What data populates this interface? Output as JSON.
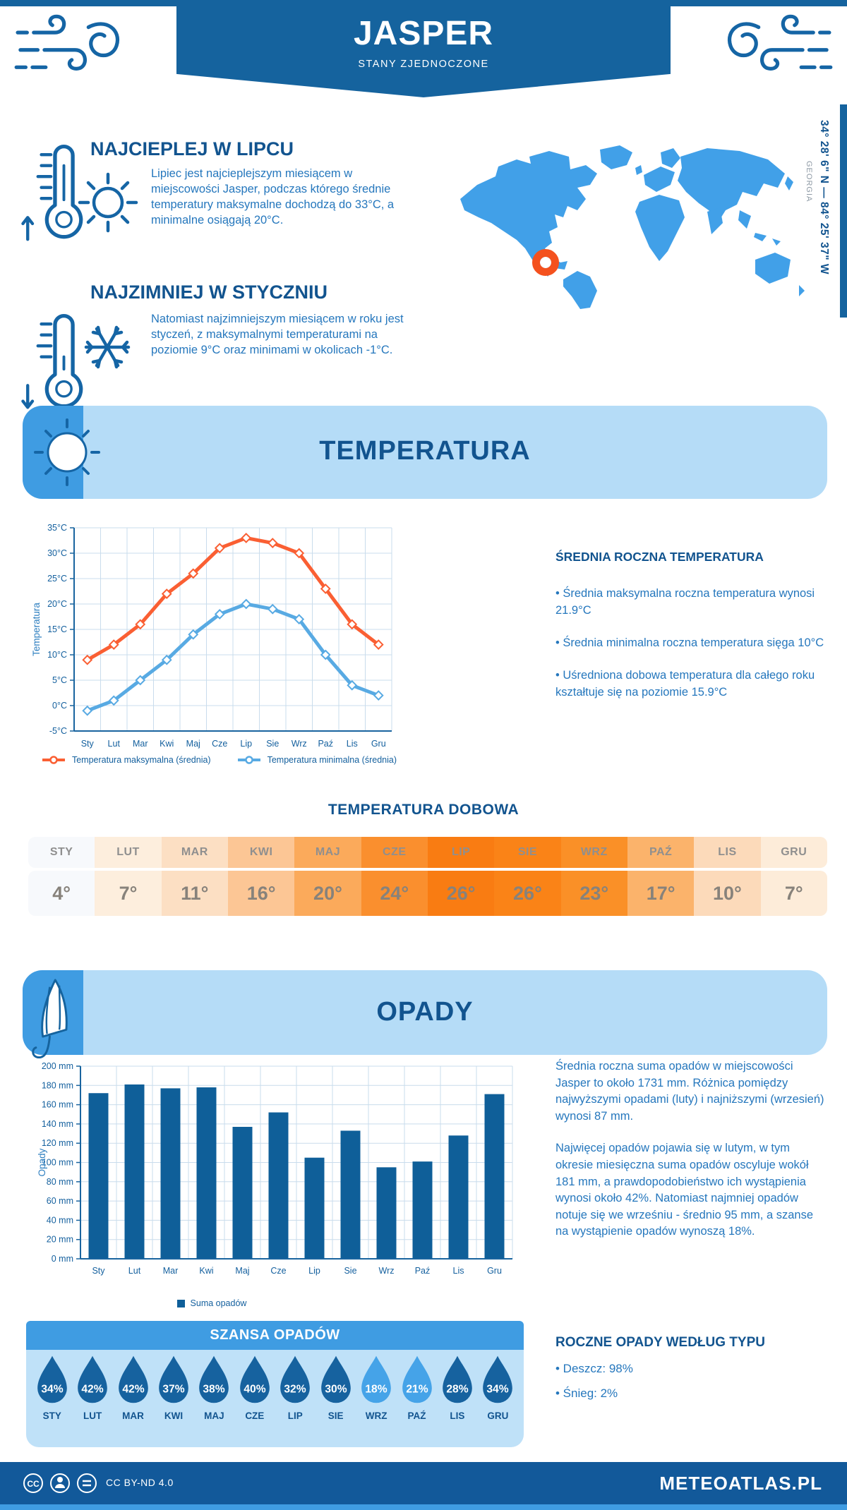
{
  "header": {
    "title": "JASPER",
    "subtitle": "STANY ZJEDNOCZONE"
  },
  "highlights": {
    "warm": {
      "title": "NAJCIEPLEJ W LIPCU",
      "text": "Lipiec jest najcieplejszym miesiącem w miejscowości Jasper, podczas którego średnie temperatury maksymalne dochodzą do 33°C, a minimalne osiągają 20°C."
    },
    "cold": {
      "title": "NAJZIMNIEJ W STYCZNIU",
      "text": "Natomiast najzimniejszym miesiącem w roku jest styczeń, z maksymalnymi temperaturami na poziomie 9°C oraz minimami w okolicach -1°C."
    }
  },
  "map": {
    "region": "GEORGIA",
    "coordinates": "34° 28' 6\" N — 84° 25' 37\" W",
    "land_color": "#41a0e8",
    "marker_color": "#f4511e"
  },
  "temperature_section": {
    "title": "TEMPERATURA",
    "panel_title": "ŚREDNIA ROCZNA TEMPERATURA",
    "bullets": [
      "• Średnia maksymalna roczna temperatura wynosi 21.9°C",
      "• Średnia minimalna roczna temperatura sięga 10°C",
      "• Uśredniona dobowa temperatura dla całego roku kształtuje się na poziomie 15.9°C"
    ]
  },
  "daily_temperature": {
    "title": "TEMPERATURA DOBOWA",
    "months": [
      "STY",
      "LUT",
      "MAR",
      "KWI",
      "MAJ",
      "CZE",
      "LIP",
      "SIE",
      "WRZ",
      "PAŹ",
      "LIS",
      "GRU"
    ],
    "values": [
      "4°",
      "7°",
      "11°",
      "16°",
      "20°",
      "24°",
      "26°",
      "26°",
      "23°",
      "17°",
      "10°",
      "7°"
    ],
    "colors": [
      "#f7f9fc",
      "#fdeedd",
      "#fcdfc3",
      "#fcc695",
      "#fbaa5b",
      "#fa8f2e",
      "#f97c12",
      "#fa8317",
      "#fa9027",
      "#fbb36b",
      "#fcdaba",
      "#fdecd9"
    ]
  },
  "precipitation_section": {
    "title": "OPADY",
    "paragraph1": "Średnia roczna suma opadów w miejscowości Jasper to około 1731 mm. Różnica pomiędzy najwyższymi opadami (luty) i najniższymi (wrzesień) wynosi 87 mm.",
    "paragraph2": "Najwięcej opadów pojawia się w lutym, w tym okresie miesięczna suma opadów oscyluje wokół 181 mm, a prawdopodobieństwo ich wystąpienia wynosi około 42%. Natomiast najmniej opadów notuje się we wrześniu - średnio 95 mm, a szanse na wystąpienie opadów wynoszą 18%."
  },
  "rain_chance": {
    "title": "SZANSA OPADÓW",
    "months": [
      "STY",
      "LUT",
      "MAR",
      "KWI",
      "MAJ",
      "CZE",
      "LIP",
      "SIE",
      "WRZ",
      "PAŹ",
      "LIS",
      "GRU"
    ],
    "values": [
      34,
      42,
      42,
      37,
      38,
      40,
      32,
      30,
      18,
      21,
      28,
      34
    ],
    "drop_colors": [
      "#16629f",
      "#16629f",
      "#16629f",
      "#16629f",
      "#16629f",
      "#16629f",
      "#16629f",
      "#16629f",
      "#45a3e8",
      "#45a3e8",
      "#16629f",
      "#16629f"
    ]
  },
  "precip_type": {
    "title": "ROCZNE OPADY WEDŁUG TYPU",
    "bullets": [
      "• Deszcz: 98%",
      "• Śnieg: 2%"
    ]
  },
  "footer": {
    "license": "CC BY-ND 4.0",
    "brand": "METEOATLAS.PL"
  },
  "chart_data": [
    {
      "type": "line",
      "title": "TEMPERATURA",
      "categories": [
        "Sty",
        "Lut",
        "Mar",
        "Kwi",
        "Maj",
        "Cze",
        "Lip",
        "Sie",
        "Wrz",
        "Paź",
        "Lis",
        "Gru"
      ],
      "series": [
        {
          "name": "Temperatura maksymalna (średnia)",
          "color": "#fa5f33",
          "values": [
            9,
            12,
            16,
            22,
            26,
            31,
            33,
            32,
            30,
            23,
            16,
            12
          ]
        },
        {
          "name": "Temperatura minimalna (średnia)",
          "color": "#58aae3",
          "values": [
            -1,
            1,
            5,
            9,
            14,
            18,
            20,
            19,
            17,
            10,
            4,
            2
          ]
        }
      ],
      "ylabel": "Temperatura",
      "ylim": [
        -5,
        35
      ],
      "ytick_step": 5,
      "ytick_suffix": "°C",
      "grid": true,
      "legend_position": "bottom"
    },
    {
      "type": "bar",
      "title": "OPADY",
      "categories": [
        "Sty",
        "Lut",
        "Mar",
        "Kwi",
        "Maj",
        "Cze",
        "Lip",
        "Sie",
        "Wrz",
        "Paź",
        "Lis",
        "Gru"
      ],
      "series": [
        {
          "name": "Suma opadów",
          "color": "#0f5f99",
          "values": [
            172,
            181,
            177,
            178,
            137,
            152,
            105,
            133,
            95,
            101,
            128,
            171
          ]
        }
      ],
      "ylabel": "Opady",
      "ylim": [
        0,
        200
      ],
      "ytick_step": 20,
      "ytick_suffix": " mm",
      "grid": true,
      "legend_position": "bottom"
    }
  ]
}
